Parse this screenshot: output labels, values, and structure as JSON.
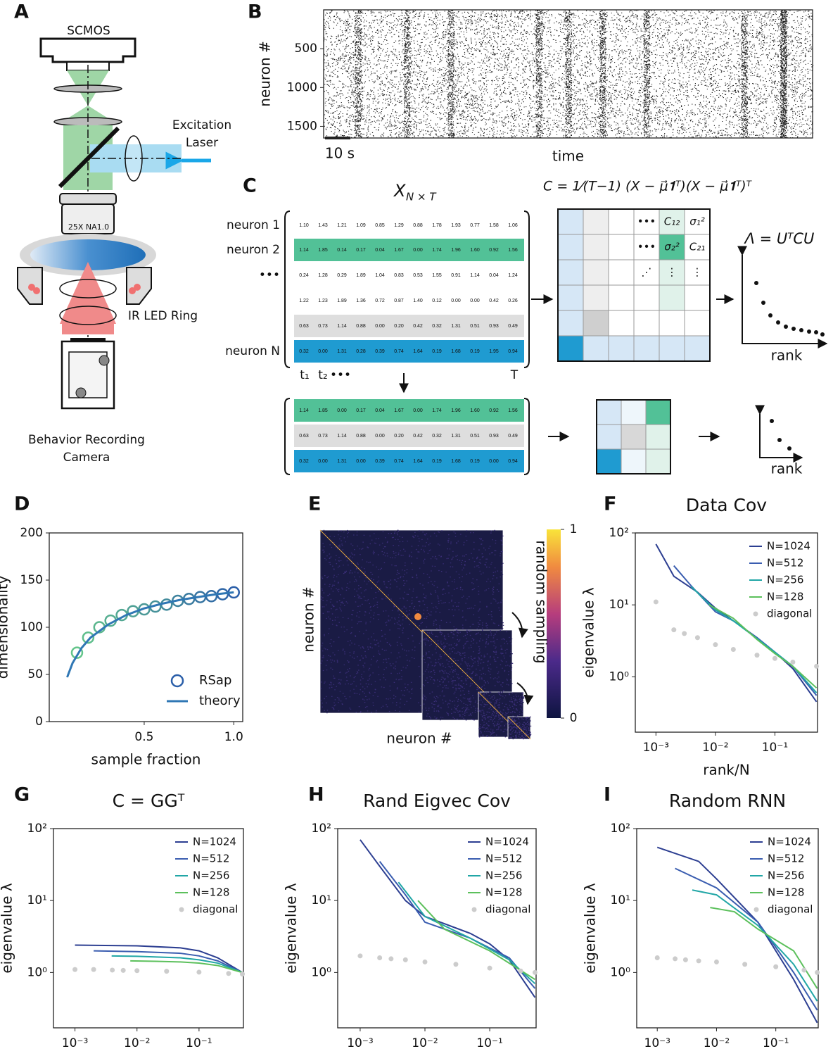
{
  "panel_labels": [
    "A",
    "B",
    "C",
    "D",
    "E",
    "F",
    "G",
    "H",
    "I"
  ],
  "diagram_a": {
    "camera": "SCMOS",
    "laser": [
      "Excitation",
      "Laser"
    ],
    "objective": "25X NA1.0",
    "led": "IR LED Ring",
    "behavior_camera": [
      "Behavior Recording",
      "Camera"
    ]
  },
  "diagram_c": {
    "matrix_title": "X",
    "matrix_subscript": "N × T",
    "cov_formula": "C = 1⁄(T−1) (X − μ⃗𝟏ᵀ)(X − μ⃗𝟏ᵀ)ᵀ",
    "eig_formula": "Λ = UᵀCU",
    "rank_labels": [
      "rank",
      "rank"
    ],
    "col_labels": [
      "t₁",
      "t₂",
      "•••",
      "T"
    ],
    "rows": [
      {
        "label": "neuron 1",
        "values": [
          "1.10",
          "1.43",
          "1.21",
          "1.09",
          "0.85",
          "1.29",
          "0.88",
          "1.78",
          "1.93",
          "0.77",
          "1.58",
          "1.06"
        ]
      },
      {
        "label": "neuron 2",
        "values": [
          "1.14",
          "1.85",
          "0.14",
          "0.17",
          "0.04",
          "1.67",
          "0.00",
          "1.74",
          "1.96",
          "1.60",
          "0.92",
          "1.56"
        ]
      },
      {
        "label": "•••",
        "values": [
          "0.24",
          "1.28",
          "0.29",
          "1.89",
          "1.04",
          "0.83",
          "0.53",
          "1.55",
          "0.91",
          "1.14",
          "0.04",
          "1.24"
        ]
      },
      {
        "values": [
          "1.22",
          "1.23",
          "1.89",
          "1.36",
          "0.72",
          "0.87",
          "1.40",
          "0.12",
          "0.00",
          "0.00",
          "0.42",
          "0.26"
        ]
      },
      {
        "values": [
          "0.63",
          "0.73",
          "1.14",
          "0.88",
          "0.00",
          "0.20",
          "0.42",
          "0.32",
          "1.31",
          "0.51",
          "0.93",
          "0.49"
        ]
      },
      {
        "label": "neuron N",
        "values": [
          "0.32",
          "0.00",
          "1.31",
          "0.28",
          "0.39",
          "0.74",
          "1.64",
          "0.19",
          "1.68",
          "0.19",
          "1.95",
          "0.94"
        ]
      }
    ],
    "sub_rows": [
      [
        "1.14",
        "1.85",
        "0.00",
        "0.17",
        "0.04",
        "1.67",
        "0.00",
        "1.74",
        "1.96",
        "1.60",
        "0.92",
        "1.56"
      ],
      [
        "0.63",
        "0.73",
        "1.14",
        "0.88",
        "0.00",
        "0.20",
        "0.42",
        "0.32",
        "1.31",
        "0.51",
        "0.93",
        "0.49"
      ],
      [
        "0.32",
        "0.00",
        "1.31",
        "0.00",
        "0.39",
        "0.74",
        "1.64",
        "0.19",
        "1.68",
        "0.19",
        "0.00",
        "0.94"
      ]
    ],
    "cov_cells": [
      "•••",
      "C₁₂",
      "σ₁²",
      "•••",
      "σ₂²",
      "C₂₁",
      "⋰",
      "⋮",
      "⋮"
    ]
  },
  "chart_data": [
    {
      "type": "raster",
      "ylabel": "neuron #",
      "xlabel": "time",
      "scale_bar": "10 s",
      "ylim": [
        1650,
        0
      ],
      "yticks": [
        500,
        1000,
        1500
      ]
    },
    {
      "type": "scatter",
      "xlabel": "sample fraction",
      "ylabel": "dimensionality",
      "xlim": [
        -0.03,
        1.05
      ],
      "ylim": [
        0,
        200
      ],
      "xticks": [
        0.5,
        {
          "value": 1,
          "label": "1.0"
        }
      ],
      "yticks": [
        0,
        50,
        100,
        150,
        200
      ],
      "legend": "lower right",
      "series": [
        {
          "name": "RSap",
          "marker": "o",
          "color": "#2b5fa9",
          "color_from": "#63c58a",
          "x": [
            0.125,
            0.1875,
            0.25,
            0.3125,
            0.375,
            0.4375,
            0.5,
            0.5625,
            0.625,
            0.6875,
            0.75,
            0.8125,
            0.875,
            0.9375,
            1.0
          ],
          "values": [
            73,
            89,
            100,
            107,
            113,
            117,
            119,
            122,
            124,
            128,
            130,
            132,
            133,
            135,
            137
          ]
        },
        {
          "name": "theory",
          "color": "#2f77b4",
          "x": [
            0.07,
            0.1,
            0.15,
            0.2,
            0.3,
            0.4,
            0.5,
            0.6,
            0.7,
            0.8,
            0.9,
            1.0
          ],
          "values": [
            47,
            62,
            78,
            89,
            103,
            113,
            120,
            125,
            129,
            132,
            135,
            137
          ]
        }
      ]
    },
    {
      "type": "heatmap",
      "xlabel": "neuron #",
      "ylabel": "neuron #",
      "colorbar_label": "random sampling",
      "clim": [
        0,
        1
      ],
      "cticks": [
        0,
        1
      ]
    },
    {
      "type": "line",
      "title": "Data Cov",
      "xlabel": "rank/N",
      "ylabel": "eigenvalue λ",
      "log_x": true,
      "log_y": true,
      "legend": "upper right",
      "xlim": [
        0.00045,
        0.52
      ],
      "ylim": [
        0.17,
        100
      ],
      "xticks": [
        {
          "value": 0.001,
          "label": "10⁻³"
        },
        {
          "value": 0.01,
          "label": "10⁻²"
        },
        {
          "value": 0.1,
          "label": "10⁻¹"
        }
      ],
      "yticks": [
        {
          "value": 1,
          "label": "10⁰"
        },
        {
          "value": 10,
          "label": "10¹"
        },
        {
          "value": 100,
          "label": "10²"
        }
      ],
      "series": [
        {
          "name": "N=1024",
          "color": "#2c3e91",
          "x": [
            0.001,
            0.002,
            0.005,
            0.01,
            0.02,
            0.05,
            0.1,
            0.2,
            0.5
          ],
          "values": [
            70,
            25,
            15,
            9,
            6,
            3.5,
            2.2,
            1.3,
            0.45
          ]
        },
        {
          "name": "N=512",
          "color": "#3a5db0",
          "x": [
            0.002,
            0.004,
            0.01,
            0.02,
            0.05,
            0.1,
            0.2,
            0.5
          ],
          "values": [
            35,
            18,
            8,
            6,
            3.5,
            2.2,
            1.4,
            0.55
          ]
        },
        {
          "name": "N=256",
          "color": "#21a6a6",
          "x": [
            0.0039,
            0.01,
            0.02,
            0.05,
            0.1,
            0.2,
            0.5
          ],
          "values": [
            18,
            8.5,
            6,
            3.4,
            2.2,
            1.4,
            0.6
          ]
        },
        {
          "name": "N=128",
          "color": "#5cc05c",
          "x": [
            0.0078,
            0.02,
            0.05,
            0.1,
            0.2,
            0.5
          ],
          "values": [
            10,
            6.5,
            3.3,
            2.1,
            1.4,
            0.7
          ]
        },
        {
          "name": "diagonal",
          "color": "#cccccc",
          "marker": "o",
          "x": [
            0.001,
            0.002,
            0.003,
            0.005,
            0.01,
            0.02,
            0.05,
            0.1,
            0.2,
            0.5
          ],
          "values": [
            11,
            4.5,
            4,
            3.5,
            2.8,
            2.4,
            2,
            1.8,
            1.6,
            1.4
          ]
        }
      ]
    },
    {
      "type": "line",
      "title": "C = GGᵀ",
      "xlabel": "rank/N",
      "ylabel": "eigenvalue λ",
      "log_x": true,
      "log_y": true,
      "legend": "upper right",
      "xlim": [
        0.00045,
        0.52
      ],
      "ylim": [
        0.17,
        100
      ],
      "xticks": [
        {
          "value": 0.001,
          "label": "10⁻³"
        },
        {
          "value": 0.01,
          "label": "10⁻²"
        },
        {
          "value": 0.1,
          "label": "10⁻¹"
        }
      ],
      "yticks": [
        {
          "value": 1,
          "label": "10⁰"
        },
        {
          "value": 10,
          "label": "10¹"
        },
        {
          "value": 100,
          "label": "10²"
        }
      ],
      "series": [
        {
          "name": "N=1024",
          "color": "#2c3e91",
          "x": [
            0.001,
            0.01,
            0.05,
            0.1,
            0.2,
            0.5
          ],
          "values": [
            2.4,
            2.35,
            2.2,
            2,
            1.6,
            1
          ]
        },
        {
          "name": "N=512",
          "color": "#3a5db0",
          "x": [
            0.002,
            0.01,
            0.05,
            0.1,
            0.2,
            0.5
          ],
          "values": [
            2,
            1.95,
            1.85,
            1.7,
            1.45,
            1
          ]
        },
        {
          "name": "N=256",
          "color": "#21a6a6",
          "x": [
            0.0039,
            0.01,
            0.05,
            0.1,
            0.2,
            0.5
          ],
          "values": [
            1.7,
            1.68,
            1.6,
            1.5,
            1.35,
            1
          ]
        },
        {
          "name": "N=128",
          "color": "#5cc05c",
          "x": [
            0.0078,
            0.02,
            0.05,
            0.1,
            0.2,
            0.5
          ],
          "values": [
            1.45,
            1.43,
            1.4,
            1.35,
            1.25,
            1
          ]
        },
        {
          "name": "diagonal",
          "color": "#cccccc",
          "marker": "o",
          "x": [
            0.001,
            0.002,
            0.004,
            0.006,
            0.01,
            0.03,
            0.1,
            0.3,
            0.5
          ],
          "values": [
            1.1,
            1.1,
            1.08,
            1.07,
            1.06,
            1.04,
            1.01,
            0.97,
            0.95
          ]
        }
      ]
    },
    {
      "type": "line",
      "title": "Rand Eigvec Cov",
      "xlabel": "rank/N",
      "ylabel": "eigenvalue λ",
      "log_x": true,
      "log_y": true,
      "legend": "upper right",
      "xlim": [
        0.00045,
        0.52
      ],
      "ylim": [
        0.17,
        100
      ],
      "xticks": [
        {
          "value": 0.001,
          "label": "10⁻³"
        },
        {
          "value": 0.01,
          "label": "10⁻²"
        },
        {
          "value": 0.1,
          "label": "10⁻¹"
        }
      ],
      "yticks": [
        {
          "value": 1,
          "label": "10⁰"
        },
        {
          "value": 10,
          "label": "10¹"
        },
        {
          "value": 100,
          "label": "10²"
        }
      ],
      "series": [
        {
          "name": "N=1024",
          "color": "#2c3e91",
          "x": [
            0.001,
            0.002,
            0.005,
            0.01,
            0.05,
            0.1,
            0.2,
            0.5
          ],
          "values": [
            70,
            30,
            10,
            6,
            3.5,
            2.5,
            1.5,
            0.45
          ]
        },
        {
          "name": "N=512",
          "color": "#3a5db0",
          "x": [
            0.002,
            0.005,
            0.01,
            0.05,
            0.2,
            0.5
          ],
          "values": [
            35,
            12,
            5,
            3,
            1.6,
            0.6
          ]
        },
        {
          "name": "N=256",
          "color": "#21a6a6",
          "x": [
            0.0039,
            0.01,
            0.05,
            0.2,
            0.5
          ],
          "values": [
            18,
            6,
            3,
            1.5,
            0.7
          ]
        },
        {
          "name": "N=128",
          "color": "#5cc05c",
          "x": [
            0.0078,
            0.02,
            0.1,
            0.5
          ],
          "values": [
            10,
            4,
            2,
            0.8
          ]
        },
        {
          "name": "diagonal",
          "color": "#cccccc",
          "marker": "o",
          "x": [
            0.001,
            0.002,
            0.003,
            0.005,
            0.01,
            0.03,
            0.1,
            0.3,
            0.5
          ],
          "values": [
            1.7,
            1.6,
            1.55,
            1.5,
            1.4,
            1.3,
            1.15,
            1.05,
            1
          ]
        }
      ]
    },
    {
      "type": "line",
      "title": "Random RNN",
      "xlabel": "rank/N",
      "ylabel": "eigenvalue λ",
      "log_x": true,
      "log_y": true,
      "legend": "upper right",
      "xlim": [
        0.00045,
        0.52
      ],
      "ylim": [
        0.17,
        100
      ],
      "xticks": [
        {
          "value": 0.001,
          "label": "10⁻³"
        },
        {
          "value": 0.01,
          "label": "10⁻²"
        },
        {
          "value": 0.1,
          "label": "10⁻¹"
        }
      ],
      "yticks": [
        {
          "value": 1,
          "label": "10⁰"
        },
        {
          "value": 10,
          "label": "10¹"
        },
        {
          "value": 100,
          "label": "10²"
        }
      ],
      "series": [
        {
          "name": "N=1024",
          "color": "#2c3e91",
          "x": [
            0.001,
            0.005,
            0.01,
            0.05,
            0.1,
            0.2,
            0.5
          ],
          "values": [
            55,
            35,
            20,
            5,
            2,
            0.8,
            0.2
          ]
        },
        {
          "name": "N=512",
          "color": "#3a5db0",
          "x": [
            0.002,
            0.01,
            0.05,
            0.2,
            0.5
          ],
          "values": [
            28,
            15,
            5,
            1,
            0.3
          ]
        },
        {
          "name": "N=256",
          "color": "#21a6a6",
          "x": [
            0.0039,
            0.01,
            0.05,
            0.2,
            0.5
          ],
          "values": [
            14,
            12,
            4.5,
            1.3,
            0.4
          ]
        },
        {
          "name": "N=128",
          "color": "#5cc05c",
          "x": [
            0.0078,
            0.02,
            0.05,
            0.2,
            0.5
          ],
          "values": [
            8,
            7,
            4,
            2,
            0.6
          ]
        },
        {
          "name": "diagonal",
          "color": "#cccccc",
          "marker": "o",
          "x": [
            0.001,
            0.002,
            0.003,
            0.005,
            0.01,
            0.03,
            0.1,
            0.3,
            0.5
          ],
          "values": [
            1.6,
            1.55,
            1.5,
            1.45,
            1.4,
            1.3,
            1.2,
            1.08,
            1
          ]
        }
      ]
    }
  ]
}
